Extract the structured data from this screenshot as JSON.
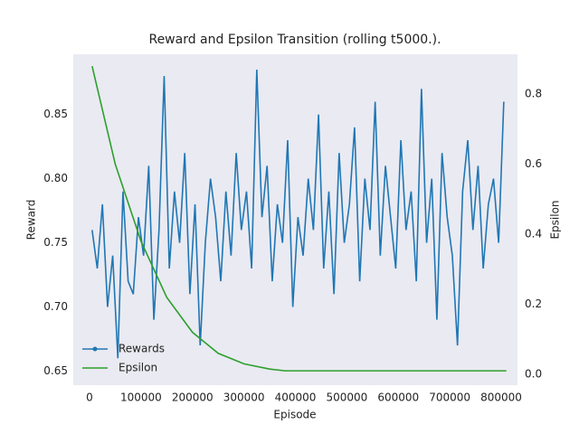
{
  "chart_data": {
    "type": "line",
    "title": "Reward and Epsilon Transition (rolling t5000.).",
    "xlabel": "Episode",
    "ylabel": "Reward",
    "y2label": "Epsilon",
    "xlim": [
      -31600,
      831600
    ],
    "xticks": [
      0,
      100000,
      200000,
      300000,
      400000,
      500000,
      600000,
      700000,
      800000
    ],
    "ylim": [
      0.639,
      0.897
    ],
    "yticks": [
      0.65,
      {
        "value": 0.7,
        "label": "0.70"
      },
      0.75,
      {
        "value": 0.8,
        "label": "0.80"
      },
      0.85
    ],
    "y2lim": [
      -0.031,
      0.914
    ],
    "y2ticks": [
      {
        "value": 0,
        "label": "0.0"
      },
      0.2,
      0.4,
      0.6,
      0.8
    ],
    "grid": false,
    "legend": "lower left",
    "series": [
      {
        "name": "Rewards",
        "color": "#1f77b4",
        "x": [
          5000,
          15000,
          25000,
          35000,
          45000,
          55000,
          65000,
          75000,
          85000,
          95000,
          105000,
          115000,
          125000,
          135000,
          145000,
          155000,
          165000,
          175000,
          185000,
          195000,
          205000,
          215000,
          225000,
          235000,
          245000,
          255000,
          265000,
          275000,
          285000,
          295000,
          305000,
          315000,
          325000,
          335000,
          345000,
          355000,
          365000,
          375000,
          385000,
          395000,
          405000,
          415000,
          425000,
          435000,
          445000,
          455000,
          465000,
          475000,
          485000,
          495000,
          505000,
          515000,
          525000,
          535000,
          545000,
          555000,
          565000,
          575000,
          585000,
          595000,
          605000,
          615000,
          625000,
          635000,
          645000,
          655000,
          665000,
          675000,
          685000,
          695000,
          705000,
          715000,
          725000,
          735000,
          745000,
          755000,
          765000,
          775000,
          785000,
          795000,
          805000
        ],
        "values": [
          0.76,
          0.73,
          0.78,
          0.7,
          0.74,
          0.66,
          0.79,
          0.72,
          0.71,
          0.77,
          0.74,
          0.81,
          0.69,
          0.76,
          0.88,
          0.73,
          0.79,
          0.75,
          0.82,
          0.71,
          0.78,
          0.67,
          0.75,
          0.8,
          0.77,
          0.72,
          0.79,
          0.74,
          0.82,
          0.76,
          0.79,
          0.73,
          0.885,
          0.77,
          0.81,
          0.72,
          0.78,
          0.75,
          0.83,
          0.7,
          0.77,
          0.74,
          0.8,
          0.76,
          0.85,
          0.73,
          0.79,
          0.71,
          0.82,
          0.75,
          0.78,
          0.84,
          0.72,
          0.8,
          0.76,
          0.86,
          0.74,
          0.81,
          0.77,
          0.73,
          0.83,
          0.76,
          0.79,
          0.72,
          0.87,
          0.75,
          0.8,
          0.69,
          0.82,
          0.77,
          0.74,
          0.67,
          0.79,
          0.83,
          0.76,
          0.81,
          0.73,
          0.78,
          0.8,
          0.75,
          0.86
        ]
      },
      {
        "name": "Epsilon",
        "color": "#2ca02c",
        "axis": "y2",
        "x": [
          5000,
          50000,
          100000,
          150000,
          200000,
          250000,
          300000,
          350000,
          380000,
          810000
        ],
        "values": [
          0.88,
          0.6,
          0.38,
          0.22,
          0.12,
          0.06,
          0.03,
          0.015,
          0.01,
          0.01
        ]
      }
    ]
  }
}
